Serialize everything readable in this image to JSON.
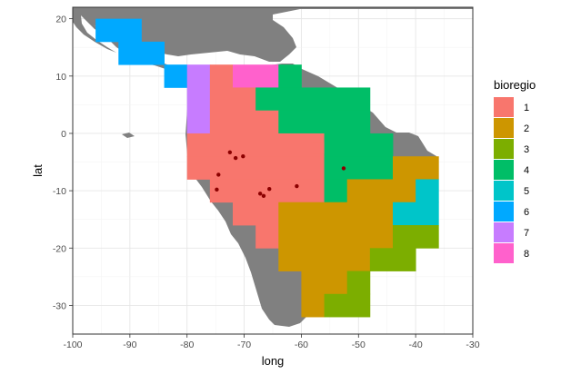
{
  "chart_data": {
    "type": "heatmap",
    "xlabel": "long",
    "ylabel": "lat",
    "xlim": [
      -100,
      -30
    ],
    "ylim": [
      -35,
      22
    ],
    "x_ticks": [
      "-100",
      "-90",
      "-80",
      "-70",
      "-60",
      "-50",
      "-40",
      "-30"
    ],
    "x_tick_values": [
      -100,
      -90,
      -80,
      -70,
      -60,
      -50,
      -40,
      -30
    ],
    "y_ticks": [
      "20",
      "10",
      "0",
      "-10",
      "-20",
      "-30"
    ],
    "y_tick_values": [
      20,
      10,
      0,
      -10,
      -20,
      -30
    ],
    "grid": true,
    "cell_size": 4,
    "legend": {
      "title": "bioregio",
      "placement": "right",
      "entries": [
        {
          "label": "1",
          "color": "#F8766D"
        },
        {
          "label": "2",
          "color": "#CD9600"
        },
        {
          "label": "3",
          "color": "#7CAE00"
        },
        {
          "label": "4",
          "color": "#00BE67"
        },
        {
          "label": "5",
          "color": "#00C5C9"
        },
        {
          "label": "6",
          "color": "#00A9FF"
        },
        {
          "label": "7",
          "color": "#C77CFF"
        },
        {
          "label": "8",
          "color": "#FF61CC"
        }
      ]
    },
    "cells": [
      {
        "region": "6",
        "xmin": -96,
        "xmax": -88,
        "ymin": 16,
        "ymax": 20
      },
      {
        "region": "6",
        "xmin": -92,
        "xmax": -84,
        "ymin": 12,
        "ymax": 16
      },
      {
        "region": "6",
        "xmin": -84,
        "xmax": -80,
        "ymin": 8,
        "ymax": 12
      },
      {
        "region": "7",
        "xmin": -80,
        "xmax": -76,
        "ymin": 0,
        "ymax": 12
      },
      {
        "region": "1",
        "xmin": -76,
        "xmax": -72,
        "ymin": 4,
        "ymax": 12
      },
      {
        "region": "8",
        "xmin": -72,
        "xmax": -64,
        "ymin": 8,
        "ymax": 12
      },
      {
        "region": "4",
        "xmin": -64,
        "xmax": -60,
        "ymin": 8,
        "ymax": 12
      },
      {
        "region": "1",
        "xmin": -72,
        "xmax": -68,
        "ymin": 4,
        "ymax": 8
      },
      {
        "region": "4",
        "xmin": -68,
        "xmax": -48,
        "ymin": 4,
        "ymax": 8
      },
      {
        "region": "1",
        "xmin": -76,
        "xmax": -64,
        "ymin": 0,
        "ymax": 4
      },
      {
        "region": "4",
        "xmin": -64,
        "xmax": -48,
        "ymin": 0,
        "ymax": 4
      },
      {
        "region": "1",
        "xmin": -80,
        "xmax": -56,
        "ymin": -4,
        "ymax": 0
      },
      {
        "region": "4",
        "xmin": -56,
        "xmax": -44,
        "ymin": -4,
        "ymax": 0
      },
      {
        "region": "1",
        "xmin": -80,
        "xmax": -56,
        "ymin": -8,
        "ymax": -4
      },
      {
        "region": "4",
        "xmin": -56,
        "xmax": -44,
        "ymin": -8,
        "ymax": -4
      },
      {
        "region": "2",
        "xmin": -44,
        "xmax": -36,
        "ymin": -8,
        "ymax": -4
      },
      {
        "region": "1",
        "xmin": -76,
        "xmax": -56,
        "ymin": -12,
        "ymax": -8
      },
      {
        "region": "4",
        "xmin": -56,
        "xmax": -52,
        "ymin": -12,
        "ymax": -8
      },
      {
        "region": "2",
        "xmin": -52,
        "xmax": -40,
        "ymin": -12,
        "ymax": -8
      },
      {
        "region": "5",
        "xmin": -40,
        "xmax": -36,
        "ymin": -12,
        "ymax": -8
      },
      {
        "region": "1",
        "xmin": -72,
        "xmax": -64,
        "ymin": -16,
        "ymax": -12
      },
      {
        "region": "2",
        "xmin": -64,
        "xmax": -44,
        "ymin": -16,
        "ymax": -12
      },
      {
        "region": "5",
        "xmin": -44,
        "xmax": -36,
        "ymin": -16,
        "ymax": -12
      },
      {
        "region": "1",
        "xmin": -68,
        "xmax": -64,
        "ymin": -20,
        "ymax": -16
      },
      {
        "region": "2",
        "xmin": -64,
        "xmax": -44,
        "ymin": -20,
        "ymax": -16
      },
      {
        "region": "3",
        "xmin": -44,
        "xmax": -36,
        "ymin": -20,
        "ymax": -16
      },
      {
        "region": "2",
        "xmin": -64,
        "xmax": -48,
        "ymin": -24,
        "ymax": -20
      },
      {
        "region": "3",
        "xmin": -48,
        "xmax": -40,
        "ymin": -24,
        "ymax": -20
      },
      {
        "region": "2",
        "xmin": -60,
        "xmax": -52,
        "ymin": -28,
        "ymax": -24
      },
      {
        "region": "3",
        "xmin": -52,
        "xmax": -48,
        "ymin": -28,
        "ymax": -24
      },
      {
        "region": "2",
        "xmin": -60,
        "xmax": -56,
        "ymin": -32,
        "ymax": -28
      },
      {
        "region": "3",
        "xmin": -56,
        "xmax": -48,
        "ymin": -32,
        "ymax": -28
      }
    ],
    "points": [
      {
        "x": -72.5,
        "y": -3.3
      },
      {
        "x": -71.5,
        "y": -4.3
      },
      {
        "x": -70.2,
        "y": -4.0
      },
      {
        "x": -74.5,
        "y": -7.2
      },
      {
        "x": -74.8,
        "y": -9.8
      },
      {
        "x": -67.2,
        "y": -10.5
      },
      {
        "x": -66.6,
        "y": -10.9
      },
      {
        "x": -65.6,
        "y": -9.7
      },
      {
        "x": -60.8,
        "y": -9.2
      },
      {
        "x": -52.6,
        "y": -6.1
      }
    ],
    "point_color": "#8B0000"
  }
}
